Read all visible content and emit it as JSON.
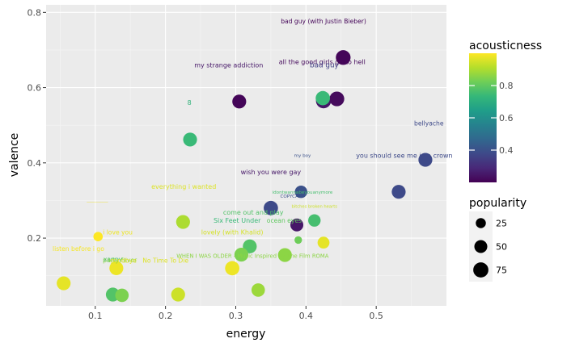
{
  "chart_data": {
    "type": "scatter",
    "title": "",
    "xlabel": "energy",
    "ylabel": "valence",
    "xlim": [
      0.03,
      0.6
    ],
    "ylim": [
      0.02,
      0.82
    ],
    "x_ticks": [
      0.1,
      0.2,
      0.3,
      0.4,
      0.5
    ],
    "x_tick_labels": [
      "0.1",
      "0.2",
      "0.3",
      "0.4",
      "0.5"
    ],
    "y_ticks": [
      0.2,
      0.4,
      0.6,
      0.8
    ],
    "y_tick_labels": [
      "0.2",
      "0.4",
      "0.6",
      "0.8"
    ],
    "grid": true,
    "color_scale": {
      "title": "acousticness",
      "palette": "viridis",
      "range": [
        0.2,
        1.0
      ],
      "ticks": [
        0.4,
        0.6,
        0.8
      ],
      "tick_labels": [
        "0.4",
        "0.6",
        "0.8"
      ]
    },
    "size_scale": {
      "title": "popularity",
      "values": [
        25,
        50,
        75
      ],
      "labels": [
        "25",
        "50",
        "75"
      ]
    },
    "points": [
      {
        "energy": 0.453,
        "valence": 0.68,
        "acousticness": 0.21,
        "popularity": 70
      },
      {
        "energy": 0.305,
        "valence": 0.563,
        "acousticness": 0.21,
        "popularity": 60
      },
      {
        "energy": 0.425,
        "valence": 0.565,
        "acousticness": 0.25,
        "popularity": 75
      },
      {
        "energy": 0.444,
        "valence": 0.57,
        "acousticness": 0.22,
        "popularity": 70
      },
      {
        "energy": 0.424,
        "valence": 0.572,
        "acousticness": 0.74,
        "popularity": 65
      },
      {
        "energy": 0.235,
        "valence": 0.462,
        "acousticness": 0.74,
        "popularity": 60
      },
      {
        "energy": 0.57,
        "valence": 0.408,
        "acousticness": 0.38,
        "popularity": 60
      },
      {
        "energy": 0.532,
        "valence": 0.323,
        "acousticness": 0.38,
        "popularity": 60
      },
      {
        "energy": 0.393,
        "valence": 0.323,
        "acousticness": 0.4,
        "popularity": 45
      },
      {
        "energy": 0.35,
        "valence": 0.28,
        "acousticness": 0.38,
        "popularity": 65
      },
      {
        "energy": 0.387,
        "valence": 0.235,
        "acousticness": 0.25,
        "popularity": 50
      },
      {
        "energy": 0.412,
        "valence": 0.247,
        "acousticness": 0.76,
        "popularity": 45
      },
      {
        "energy": 0.225,
        "valence": 0.243,
        "acousticness": 0.9,
        "popularity": 60
      },
      {
        "energy": 0.104,
        "valence": 0.204,
        "acousticness": 1.0,
        "popularity": 20
      },
      {
        "energy": 0.389,
        "valence": 0.195,
        "acousticness": 0.82,
        "popularity": 10
      },
      {
        "energy": 0.425,
        "valence": 0.188,
        "acousticness": 0.97,
        "popularity": 40
      },
      {
        "energy": 0.32,
        "valence": 0.178,
        "acousticness": 0.78,
        "popularity": 60
      },
      {
        "energy": 0.308,
        "valence": 0.156,
        "acousticness": 0.84,
        "popularity": 60
      },
      {
        "energy": 0.37,
        "valence": 0.155,
        "acousticness": 0.86,
        "popularity": 60
      },
      {
        "energy": 0.13,
        "valence": 0.12,
        "acousticness": 0.98,
        "popularity": 60
      },
      {
        "energy": 0.295,
        "valence": 0.12,
        "acousticness": 0.98,
        "popularity": 65
      },
      {
        "energy": 0.055,
        "valence": 0.08,
        "acousticness": 0.97,
        "popularity": 60
      },
      {
        "energy": 0.125,
        "valence": 0.05,
        "acousticness": 0.78,
        "popularity": 60
      },
      {
        "energy": 0.138,
        "valence": 0.048,
        "acousticness": 0.84,
        "popularity": 55
      },
      {
        "energy": 0.218,
        "valence": 0.05,
        "acousticness": 0.94,
        "popularity": 60
      },
      {
        "energy": 0.332,
        "valence": 0.062,
        "acousticness": 0.88,
        "popularity": 55
      }
    ],
    "annotations": [
      {
        "text": "bad guy (with Justin Bieber)",
        "x": 0.425,
        "y": 0.776,
        "acousticness": 0.21,
        "popularity": 45
      },
      {
        "text": "my strange addiction",
        "x": 0.29,
        "y": 0.66,
        "acousticness": 0.25,
        "popularity": 50
      },
      {
        "text": "all the good girls go to hell",
        "x": 0.423,
        "y": 0.668,
        "acousticness": 0.22,
        "popularity": 50
      },
      {
        "text": "bad guy",
        "x": 0.426,
        "y": 0.66,
        "acousticness": 0.35,
        "popularity": 60
      },
      {
        "text": "8",
        "x": 0.234,
        "y": 0.56,
        "acousticness": 0.72,
        "popularity": 50
      },
      {
        "text": "bellyache",
        "x": 0.575,
        "y": 0.505,
        "acousticness": 0.38,
        "popularity": 45
      },
      {
        "text": "my boy",
        "x": 0.395,
        "y": 0.42,
        "acousticness": 0.4,
        "popularity": 20
      },
      {
        "text": "you should see me in a crown",
        "x": 0.54,
        "y": 0.42,
        "acousticness": 0.38,
        "popularity": 50
      },
      {
        "text": "wish you were gay",
        "x": 0.35,
        "y": 0.376,
        "acousticness": 0.25,
        "popularity": 50
      },
      {
        "text": "idontwannabeyouanymore",
        "x": 0.395,
        "y": 0.322,
        "acousticness": 0.76,
        "popularity": 20
      },
      {
        "text": "COPYCAT",
        "x": 0.378,
        "y": 0.312,
        "acousticness": 0.4,
        "popularity": 20
      },
      {
        "text": "everything i wanted",
        "x": 0.226,
        "y": 0.337,
        "acousticness": 0.96,
        "popularity": 50
      },
      {
        "text": "___________",
        "x": 0.103,
        "y": 0.302,
        "acousticness": 0.98,
        "popularity": 10
      },
      {
        "text": "listen before i go",
        "x": 0.076,
        "y": 0.172,
        "acousticness": 0.99,
        "popularity": 45
      },
      {
        "text": "i love you",
        "x": 0.132,
        "y": 0.216,
        "acousticness": 0.98,
        "popularity": 45
      },
      {
        "text": "come out and play",
        "x": 0.325,
        "y": 0.268,
        "acousticness": 0.78,
        "popularity": 50
      },
      {
        "text": "Six Feet Under",
        "x": 0.302,
        "y": 0.247,
        "acousticness": 0.74,
        "popularity": 50
      },
      {
        "text": "ocean eyes",
        "x": 0.369,
        "y": 0.247,
        "acousticness": 0.8,
        "popularity": 45
      },
      {
        "text": "bitches broken hearts",
        "x": 0.412,
        "y": 0.285,
        "acousticness": 0.94,
        "popularity": 15
      },
      {
        "text": "lovely (with Khalid)",
        "x": 0.295,
        "y": 0.216,
        "acousticness": 0.95,
        "popularity": 50
      },
      {
        "text": "xanny",
        "x": 0.125,
        "y": 0.144,
        "acousticness": 0.76,
        "popularity": 45
      },
      {
        "text": "party favor",
        "x": 0.135,
        "y": 0.141,
        "acousticness": 0.85,
        "popularity": 45
      },
      {
        "text": "goodbye",
        "x": 0.14,
        "y": 0.14,
        "acousticness": 0.96,
        "popularity": 45
      },
      {
        "text": "No Time To Die",
        "x": 0.2,
        "y": 0.14,
        "acousticness": 0.96,
        "popularity": 45
      },
      {
        "text": "WHEN I WAS OLDER - Music Inspired By The Film ROMA",
        "x": 0.324,
        "y": 0.153,
        "acousticness": 0.86,
        "popularity": 35
      }
    ]
  }
}
